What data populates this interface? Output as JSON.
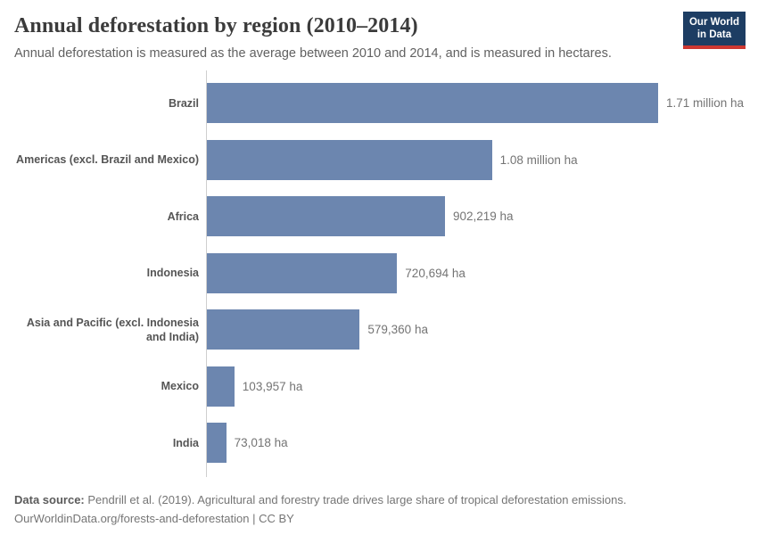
{
  "header": {
    "logo": {
      "line1": "Our World",
      "line2": "in Data"
    }
  },
  "chart_data": {
    "type": "bar",
    "orientation": "horizontal",
    "title": "Annual deforestation by region (2010–2014)",
    "subtitle": "Annual deforestation is measured as the average between 2010 and 2014, and is measured in hectares.",
    "categories": [
      "Brazil",
      "Americas (excl. Brazil and Mexico)",
      "Africa",
      "Indonesia",
      "Asia and Pacific (excl. Indonesia and India)",
      "Mexico",
      "India"
    ],
    "values": [
      1710000,
      1080000,
      902219,
      720694,
      579360,
      103957,
      73018
    ],
    "value_labels": [
      "1.71 million ha",
      "1.08 million ha",
      "902,219 ha",
      "720,694 ha",
      "579,360 ha",
      "103,957 ha",
      "73,018 ha"
    ],
    "unit": "hectares",
    "xlim": [
      0,
      1710000
    ],
    "grid": false,
    "legend": false
  },
  "colors": {
    "bar": "#6c86af",
    "logo_navy": "#1d3d63",
    "logo_red": "#cd3731"
  },
  "footer": {
    "source_label": "Data source:",
    "source_text": "Pendrill et al. (2019). Agricultural and forestry trade drives large share of tropical deforestation emissions.",
    "url": "OurWorldinData.org/forests-and-deforestation",
    "separator": " | ",
    "license": "CC BY"
  }
}
